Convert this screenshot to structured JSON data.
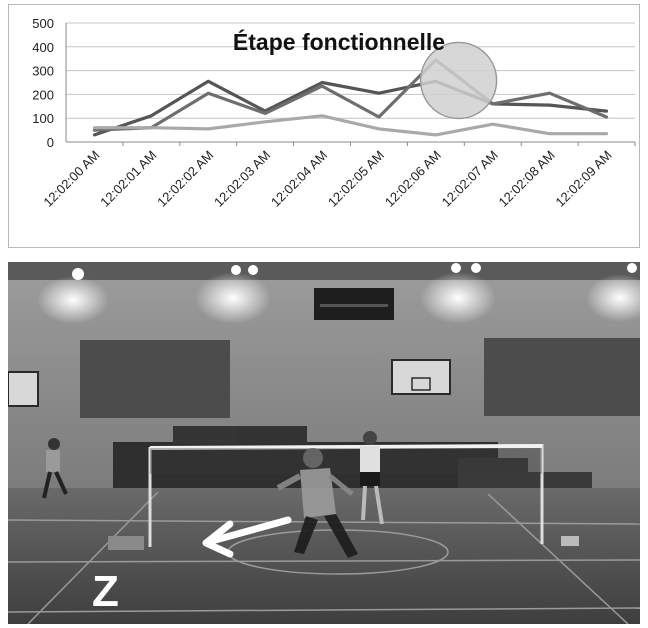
{
  "chart_data": {
    "type": "line",
    "title": "Étape fonctionnelle",
    "categories": [
      "12:02:00 AM",
      "12:02:01 AM",
      "12:02:02 AM",
      "12:02:03 AM",
      "12:02:04 AM",
      "12:02:05 AM",
      "12:02:06 AM",
      "12:02:07 AM",
      "12:02:08 AM",
      "12:02:09 AM"
    ],
    "series": [
      {
        "values": [
          30,
          110,
          255,
          130,
          250,
          205,
          255,
          160,
          155,
          130
        ],
        "color": "#555555"
      },
      {
        "values": [
          50,
          60,
          205,
          120,
          235,
          105,
          345,
          160,
          205,
          105
        ],
        "color": "#6e6e6e"
      },
      {
        "values": [
          60,
          60,
          55,
          85,
          110,
          55,
          30,
          75,
          35,
          35
        ],
        "color": "#a9a9a9"
      }
    ],
    "ylim": [
      0,
      500
    ],
    "yticks": [
      "0",
      "100",
      "200",
      "300",
      "400",
      "500"
    ],
    "grid": true,
    "annotation": {
      "shape": "ellipse",
      "category_index": 6.4,
      "value": 250,
      "fill": "#d0d0d0"
    },
    "xlabel": "",
    "ylabel": ""
  },
  "photo": {
    "label": "Z",
    "arrow_direction": "left",
    "scene": "badminton-court"
  }
}
